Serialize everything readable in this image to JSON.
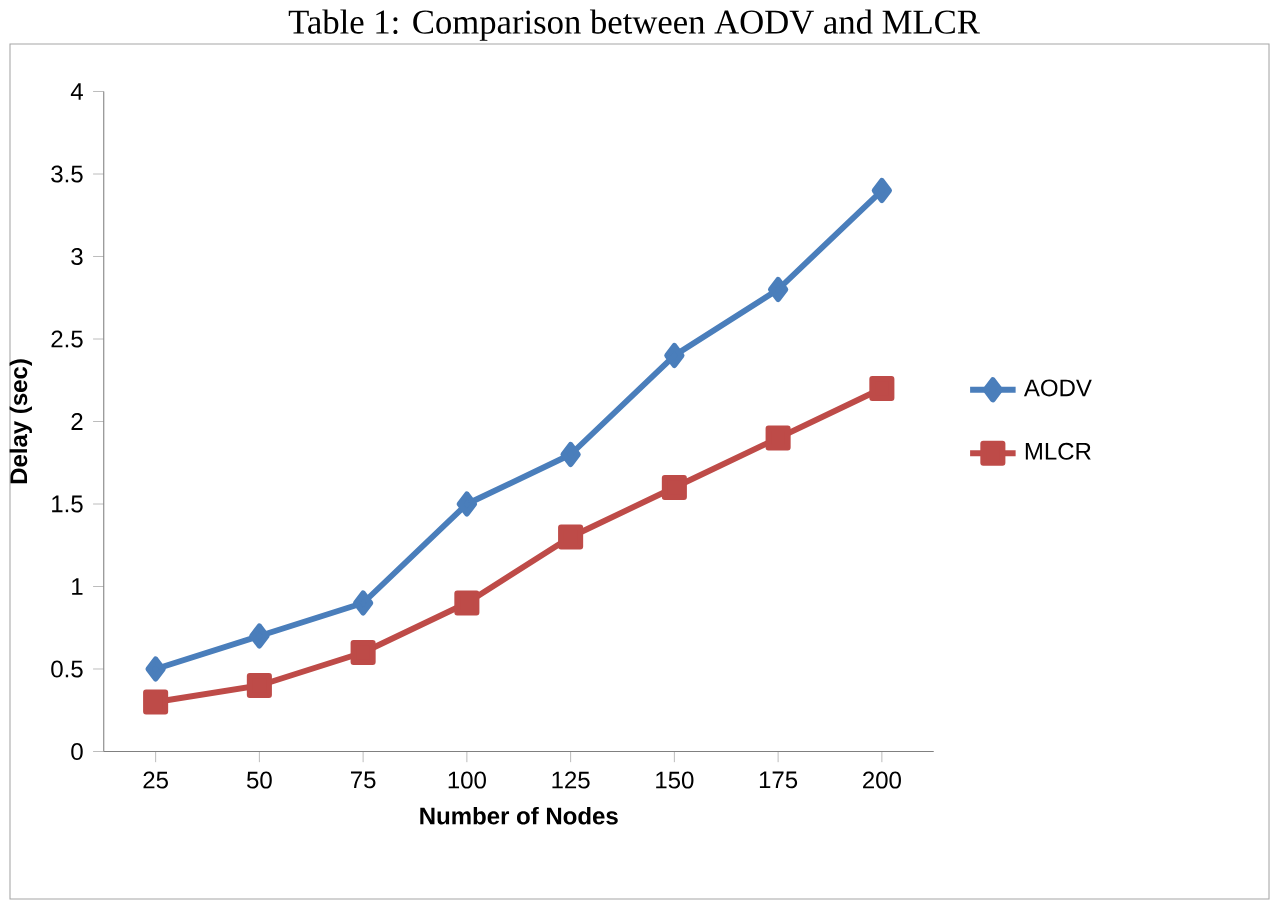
{
  "chart_data": {
    "type": "line",
    "title": "Table 1: Comparison between AODV and MLCR",
    "xlabel": "Number of Nodes",
    "ylabel": "Delay (sec)",
    "categories": [
      "25",
      "50",
      "75",
      "100",
      "125",
      "150",
      "175",
      "200"
    ],
    "series": [
      {
        "name": "AODV",
        "color": "#4a7ebb",
        "marker": "diamond",
        "values": [
          0.5,
          0.7,
          0.9,
          1.5,
          1.8,
          2.4,
          2.8,
          3.4
        ]
      },
      {
        "name": "MLCR",
        "color": "#be4b48",
        "marker": "square",
        "values": [
          0.3,
          0.4,
          0.6,
          0.9,
          1.3,
          1.6,
          1.9,
          2.2
        ]
      }
    ],
    "ylim": [
      0,
      4
    ],
    "yticks": [
      0,
      0.5,
      1,
      1.5,
      2,
      2.5,
      3,
      3.5,
      4
    ],
    "grid": false,
    "legend": "right",
    "line_style": "solid"
  }
}
